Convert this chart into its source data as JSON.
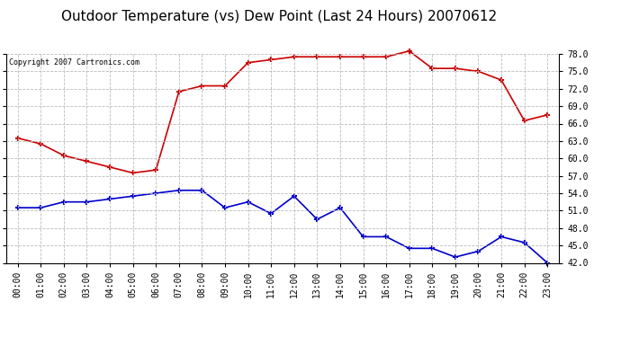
{
  "title": "Outdoor Temperature (vs) Dew Point (Last 24 Hours) 20070612",
  "copyright_text": "Copyright 2007 Cartronics.com",
  "x_labels": [
    "00:00",
    "01:00",
    "02:00",
    "03:00",
    "04:00",
    "05:00",
    "06:00",
    "07:00",
    "08:00",
    "09:00",
    "10:00",
    "11:00",
    "12:00",
    "13:00",
    "14:00",
    "15:00",
    "16:00",
    "17:00",
    "18:00",
    "19:00",
    "20:00",
    "21:00",
    "22:00",
    "23:00"
  ],
  "temp_data": [
    63.5,
    62.5,
    60.5,
    59.5,
    58.5,
    57.5,
    58.0,
    71.5,
    72.5,
    72.5,
    76.5,
    77.0,
    77.5,
    77.5,
    77.5,
    77.5,
    77.5,
    78.5,
    75.5,
    75.5,
    75.0,
    73.5,
    66.5,
    67.5
  ],
  "dew_data": [
    51.5,
    51.5,
    52.5,
    52.5,
    53.0,
    53.5,
    54.0,
    54.5,
    54.5,
    51.5,
    52.5,
    50.5,
    53.5,
    49.5,
    51.5,
    46.5,
    46.5,
    44.5,
    44.5,
    43.0,
    44.0,
    46.5,
    45.5,
    42.0
  ],
  "temp_color": "#cc0000",
  "dew_color": "#0000cc",
  "bg_color": "#ffffff",
  "grid_color": "#bbbbbb",
  "ylim_min": 42.0,
  "ylim_max": 78.0,
  "yticks": [
    42.0,
    45.0,
    48.0,
    51.0,
    54.0,
    57.0,
    60.0,
    63.0,
    66.0,
    69.0,
    72.0,
    75.0,
    78.0
  ],
  "title_fontsize": 11,
  "copyright_fontsize": 6,
  "tick_fontsize": 7,
  "marker": "+",
  "marker_size": 5,
  "marker_edge_width": 1.5,
  "line_width": 1.2
}
